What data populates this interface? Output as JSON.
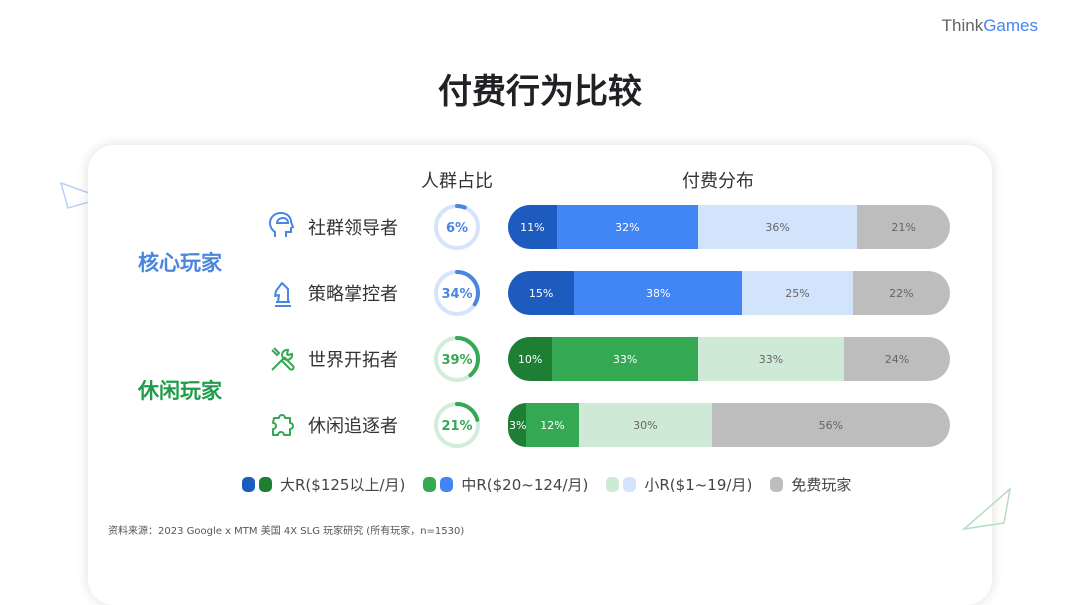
{
  "brand": {
    "think": "Think",
    "games": "Games"
  },
  "title": "付费行为比较",
  "headers": {
    "share": "人群占比",
    "distribution": "付费分布"
  },
  "groups": [
    {
      "label": "核心玩家",
      "color": "#4a86e0"
    },
    {
      "label": "休闲玩家",
      "color": "#1e9e4a"
    }
  ],
  "colors": {
    "blue": [
      "#1e5bbf",
      "#4285f4",
      "#d2e3fc",
      "#bdbdbd"
    ],
    "green": [
      "#1e7e34",
      "#34a853",
      "#ceead6",
      "#bdbdbd"
    ],
    "blue_ring": "#d6e4fb",
    "green_ring": "#d4ecdb"
  },
  "chart_data": {
    "type": "bar",
    "stacked": true,
    "orientation": "horizontal",
    "categories": [
      "社群领导者",
      "策略掌控者",
      "世界开拓者",
      "休闲追逐者"
    ],
    "share": [
      6,
      34,
      39,
      21
    ],
    "series": [
      {
        "name": "大R($125以上/月)",
        "values": [
          11,
          15,
          10,
          3
        ]
      },
      {
        "name": "中R($20~124/月)",
        "values": [
          32,
          38,
          33,
          12
        ]
      },
      {
        "name": "小R($1~19/月)",
        "values": [
          36,
          25,
          33,
          30
        ]
      },
      {
        "name": "免费玩家",
        "values": [
          21,
          22,
          24,
          56
        ]
      }
    ]
  },
  "rows": [
    {
      "label": "社群领导者",
      "icon": "head-icon",
      "theme": "blue",
      "share_label": "6%",
      "seg_labels": [
        "11%",
        "32%",
        "36%",
        "21%"
      ]
    },
    {
      "label": "策略掌控者",
      "icon": "chess-knight-icon",
      "theme": "blue",
      "share_label": "34%",
      "seg_labels": [
        "15%",
        "38%",
        "25%",
        "22%"
      ]
    },
    {
      "label": "世界开拓者",
      "icon": "tools-icon",
      "theme": "green",
      "share_label": "39%",
      "seg_labels": [
        "10%",
        "33%",
        "33%",
        "24%"
      ]
    },
    {
      "label": "休闲追逐者",
      "icon": "puzzle-icon",
      "theme": "green",
      "share_label": "21%",
      "seg_labels": [
        "3%",
        "12%",
        "30%",
        "56%"
      ]
    }
  ],
  "legend": [
    "大R($125以上/月)",
    "中R($20~124/月)",
    "小R($1~19/月)",
    "免费玩家"
  ],
  "footnote": "资料来源：2023 Google x MTM 美国 4X SLG 玩家研究 (所有玩家，n=1530)"
}
